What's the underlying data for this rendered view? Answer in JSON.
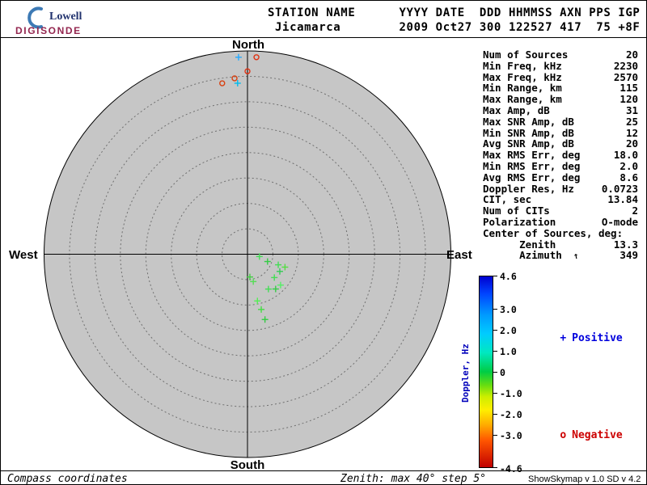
{
  "logo": {
    "name": "Lowell",
    "product": "DIGISONDE"
  },
  "header": {
    "text": "STATION NAME      YYYY DATE  DDD HHMMSS AXN PPS IGP\n Jicamarca        2009 Oct27 300 122527 417  75 +8F"
  },
  "stats": {
    "azimuth_arrow_glyph": "↑",
    "rows": [
      {
        "label": "Num of Sources",
        "value": "20"
      },
      {
        "label": "Min Freq, kHz",
        "value": "2230"
      },
      {
        "label": "Max Freq, kHz",
        "value": "2570"
      },
      {
        "label": "Min Range, km",
        "value": "115"
      },
      {
        "label": "Max Range, km",
        "value": "120"
      },
      {
        "label": "Max Amp, dB",
        "value": "31"
      },
      {
        "label": "Max SNR Amp, dB",
        "value": "25"
      },
      {
        "label": "Min SNR Amp, dB",
        "value": "12"
      },
      {
        "label": "Avg SNR Amp, dB",
        "value": "20"
      },
      {
        "label": "Max RMS Err, deg",
        "value": "18.0"
      },
      {
        "label": "Min RMS Err, deg",
        "value": "2.0"
      },
      {
        "label": "Avg RMS Err, deg",
        "value": "8.6"
      },
      {
        "label": "Doppler Res, Hz",
        "value": "0.0723"
      },
      {
        "label": "CIT, sec",
        "value": "13.84"
      },
      {
        "label": "Num of CITs",
        "value": "2"
      },
      {
        "label": "Polarization",
        "value": "O-mode"
      },
      {
        "label": "Center of Sources, deg:",
        "value": ""
      },
      {
        "label": "      Zenith",
        "value": "13.3"
      },
      {
        "label": "      Azimuth",
        "value": "349",
        "icon": "azimuth-arrow"
      }
    ]
  },
  "legend": {
    "positive": {
      "marker": "+",
      "label": "Positive",
      "color": "#0000dd"
    },
    "negative": {
      "marker": "o",
      "label": "Negative",
      "color": "#cc0000"
    }
  },
  "footer": {
    "left": "Compass coordinates",
    "center": "Zenith: max 40°  step 5°",
    "right": "ShowSkymap v 1.0   SD v 4.2"
  },
  "chart_data": {
    "type": "scatter",
    "projection": "polar",
    "coordinate_system": "compass",
    "title": "Skymap of sources, compass coordinates",
    "compass_labels": {
      "n": "North",
      "e": "East",
      "s": "South",
      "w": "West"
    },
    "zenith_max_deg": 40,
    "zenith_step_deg": 5,
    "disk_fill": "#c6c6c6",
    "grid": "dashed concentric rings every 5 deg, N-S and E-W axis lines",
    "colorbar": {
      "label": "Doppler, Hz",
      "min": -4.6,
      "max": 4.6,
      "ticks": [
        {
          "value": 4.6,
          "label": "4.6"
        },
        {
          "value": 3.0,
          "label": "3.0"
        },
        {
          "value": 2.0,
          "label": "2.0"
        },
        {
          "value": 1.0,
          "label": "1.0"
        },
        {
          "value": 0,
          "label": "0"
        },
        {
          "value": -1.0,
          "label": "-1.0"
        },
        {
          "value": -2.0,
          "label": "-2.0"
        },
        {
          "value": -3.0,
          "label": "-3.0"
        },
        {
          "value": -4.6,
          "label": "-4.6"
        }
      ],
      "gradient": [
        [
          "0%",
          "#0000d0"
        ],
        [
          "9%",
          "#0044ff"
        ],
        [
          "20%",
          "#0099ff"
        ],
        [
          "30%",
          "#00ccff"
        ],
        [
          "40%",
          "#00e8c0"
        ],
        [
          "50%",
          "#00cc44"
        ],
        [
          "57%",
          "#66dd11"
        ],
        [
          "63%",
          "#ccee00"
        ],
        [
          "70%",
          "#ffee00"
        ],
        [
          "78%",
          "#ffaa00"
        ],
        [
          "86%",
          "#ff5500"
        ],
        [
          "100%",
          "#c00000"
        ]
      ]
    },
    "points": [
      {
        "zenith": 38.8,
        "azimuth": 357.4,
        "marker": "+",
        "color": "#22aaff"
      },
      {
        "zenith": 38.8,
        "azimuth": 2.6,
        "marker": "o",
        "color": "#e03010"
      },
      {
        "zenith": 36.0,
        "azimuth": 0.0,
        "marker": "o",
        "color": "#e03010"
      },
      {
        "zenith": 34.7,
        "azimuth": 355.8,
        "marker": "o",
        "color": "#d84010"
      },
      {
        "zenith": 34.0,
        "azimuth": 351.6,
        "marker": "o",
        "color": "#d84010"
      },
      {
        "zenith": 33.7,
        "azimuth": 356.7,
        "marker": "+",
        "color": "#00bbee"
      },
      {
        "zenith": 2.4,
        "azimuth": 101,
        "marker": "+",
        "color": "#44dd55"
      },
      {
        "zenith": 4.2,
        "azimuth": 110,
        "marker": "+",
        "color": "#33cc44"
      },
      {
        "zenith": 6.4,
        "azimuth": 109,
        "marker": "+",
        "color": "#44dd55"
      },
      {
        "zenith": 7.8,
        "azimuth": 109,
        "marker": "+",
        "color": "#55dd44"
      },
      {
        "zenith": 7.2,
        "azimuth": 118,
        "marker": "+",
        "color": "#33cc55"
      },
      {
        "zenith": 7.0,
        "azimuth": 131,
        "marker": "+",
        "color": "#44dd55"
      },
      {
        "zenith": 8.9,
        "azimuth": 133,
        "marker": "+",
        "color": "#55ee66"
      },
      {
        "zenith": 8.8,
        "azimuth": 141,
        "marker": "+",
        "color": "#33cc44"
      },
      {
        "zenith": 8.0,
        "azimuth": 149,
        "marker": "+",
        "color": "#44dd55"
      },
      {
        "zenith": 5.5,
        "azimuth": 168,
        "marker": "+",
        "color": "#55dd55"
      },
      {
        "zenith": 4.5,
        "azimuth": 174,
        "marker": "+",
        "color": "#44cc44"
      },
      {
        "zenith": 9.4,
        "azimuth": 168,
        "marker": "+",
        "color": "#55ee55"
      },
      {
        "zenith": 11.2,
        "azimuth": 166,
        "marker": "+",
        "color": "#44dd44"
      },
      {
        "zenith": 13.3,
        "azimuth": 165,
        "marker": "+",
        "color": "#33cc44"
      }
    ]
  }
}
